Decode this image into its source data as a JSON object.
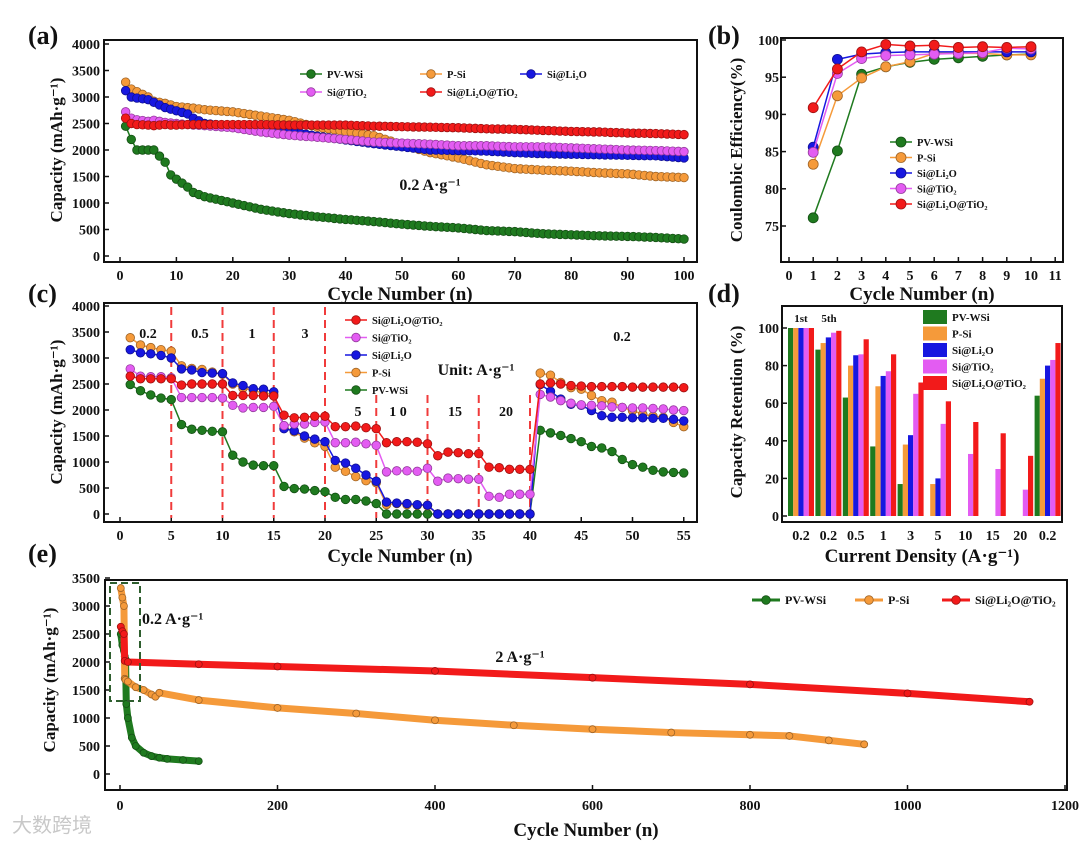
{
  "watermark": "大数跨境",
  "colors": {
    "PV-WSi": "#1f7a1f",
    "P-Si": "#f59a3a",
    "Si@Li₂O": "#1717e0",
    "Si@TiO₂": "#e35cf2",
    "Si@Li₂O@TiO₂": "#f21a1a"
  },
  "chart_data": [
    {
      "id": "a",
      "panel_label": "(a)",
      "type": "line",
      "xlabel": "Cycle Number (n)",
      "ylabel": "Capacity (mAh·g⁻¹)",
      "xlim": [
        0,
        100
      ],
      "ylim": [
        0,
        4000
      ],
      "xticks": [
        0,
        10,
        20,
        30,
        40,
        50,
        60,
        70,
        80,
        90,
        100
      ],
      "yticks": [
        0,
        500,
        1000,
        1500,
        2000,
        2500,
        3000,
        3500,
        4000
      ],
      "legend": [
        "PV-WSi",
        "P-Si",
        "Si@Li₂O",
        "Si@TiO₂",
        "Si@Li₂O@TiO₂"
      ],
      "legend_position": "top-center",
      "annotations": [
        "0.2 A·g⁻¹"
      ],
      "x": [
        1,
        2,
        3,
        5,
        6,
        8,
        9,
        10,
        12,
        13,
        15,
        20,
        25,
        30,
        35,
        40,
        45,
        50,
        55,
        60,
        65,
        70,
        75,
        80,
        85,
        90,
        95,
        100
      ],
      "series": [
        {
          "name": "PV-WSi",
          "values": [
            2450,
            2200,
            2000,
            2000,
            2000,
            1770,
            1530,
            1450,
            1300,
            1200,
            1120,
            1000,
            880,
            800,
            740,
            690,
            650,
            600,
            560,
            530,
            480,
            460,
            420,
            400,
            380,
            370,
            350,
            320
          ]
        },
        {
          "name": "P-Si",
          "values": [
            3280,
            3150,
            3100,
            3000,
            2920,
            2880,
            2850,
            2820,
            2800,
            2790,
            2760,
            2720,
            2640,
            2560,
            2430,
            2350,
            2270,
            2100,
            1950,
            1850,
            1720,
            1650,
            1620,
            1600,
            1570,
            1550,
            1500,
            1480
          ]
        },
        {
          "name": "Si@Li₂O",
          "values": [
            3120,
            3000,
            2980,
            2950,
            2900,
            2800,
            2770,
            2740,
            2680,
            2600,
            2500,
            2450,
            2400,
            2350,
            2260,
            2190,
            2120,
            2060,
            2000,
            1990,
            1980,
            1950,
            1930,
            1920,
            1910,
            1900,
            1890,
            1850
          ]
        },
        {
          "name": "Si@TiO₂",
          "values": [
            2720,
            2600,
            2570,
            2540,
            2560,
            2520,
            2510,
            2500,
            2480,
            2470,
            2460,
            2420,
            2340,
            2280,
            2240,
            2200,
            2150,
            2130,
            2110,
            2080,
            2080,
            2060,
            2060,
            2040,
            2020,
            2000,
            1990,
            1970
          ]
        },
        {
          "name": "Si@Li₂O@TiO₂",
          "values": [
            2600,
            2500,
            2480,
            2470,
            2460,
            2480,
            2470,
            2470,
            2480,
            2480,
            2480,
            2480,
            2480,
            2470,
            2470,
            2470,
            2450,
            2440,
            2430,
            2420,
            2400,
            2390,
            2370,
            2350,
            2340,
            2320,
            2310,
            2290
          ]
        }
      ]
    },
    {
      "id": "b",
      "panel_label": "(b)",
      "type": "line",
      "xlabel": "Cycle Number (n)",
      "ylabel": "Coulombic Efficiency(%)",
      "xlim": [
        0,
        11
      ],
      "ylim": [
        72.5,
        100
      ],
      "xticks": [
        0,
        1,
        2,
        3,
        4,
        5,
        6,
        7,
        8,
        9,
        10,
        11
      ],
      "yticks": [
        75,
        80,
        85,
        90,
        95,
        100
      ],
      "legend": [
        "PV-WSi",
        "P-Si",
        "Si@Li₂O",
        "Si@TiO₂",
        "Si@Li₂O@TiO₂"
      ],
      "legend_position": "center-right",
      "annotations": [],
      "x": [
        1,
        2,
        3,
        4,
        5,
        6,
        7,
        8,
        9,
        10
      ],
      "series": [
        {
          "name": "PV-WSi",
          "values": [
            76.1,
            85.1,
            95.4,
            96.4,
            97.0,
            97.4,
            97.6,
            97.8,
            98.0,
            98.1
          ]
        },
        {
          "name": "P-Si",
          "values": [
            83.3,
            92.5,
            94.9,
            96.4,
            97.1,
            98.2,
            98.2,
            98.2,
            98.0,
            98.0
          ]
        },
        {
          "name": "Si@Li₂O",
          "values": [
            85.6,
            97.4,
            98.1,
            98.3,
            98.4,
            98.4,
            98.4,
            98.4,
            98.4,
            98.4
          ]
        },
        {
          "name": "Si@TiO₂",
          "values": [
            84.9,
            95.5,
            97.5,
            97.9,
            98.0,
            98.1,
            98.2,
            98.3,
            98.9,
            98.8
          ]
        },
        {
          "name": "Si@Li₂O@TiO₂",
          "values": [
            90.9,
            96.1,
            98.4,
            99.4,
            99.2,
            99.3,
            99.0,
            99.1,
            99.0,
            99.1
          ]
        }
      ]
    },
    {
      "id": "c",
      "panel_label": "(c)",
      "type": "line",
      "xlabel": "Cycle Number (n)",
      "ylabel": "Capacity (mAh·g⁻¹)",
      "xlim": [
        0,
        55
      ],
      "ylim": [
        0,
        4000
      ],
      "xticks": [
        0,
        5,
        10,
        15,
        20,
        25,
        30,
        35,
        40,
        45,
        50,
        55
      ],
      "yticks": [
        0,
        500,
        1000,
        1500,
        2000,
        2500,
        3000,
        3500,
        4000
      ],
      "legend": [
        "Si@Li₂O@TiO₂",
        "Si@TiO₂",
        "Si@Li₂O",
        "P-Si",
        "PV-WSi"
      ],
      "legend_position": "top-center",
      "rate_labels": [
        "0.2",
        "0.5",
        "1",
        "3",
        "5",
        "1 0",
        "15",
        "20",
        "0.2"
      ],
      "annotations": [
        "Unit: A·g⁻¹"
      ],
      "dividers": [
        5,
        10,
        15,
        20,
        25,
        30,
        35,
        40
      ],
      "x": [
        1,
        2,
        3,
        4,
        5,
        6,
        7,
        8,
        9,
        10,
        11,
        12,
        13,
        14,
        15,
        16,
        17,
        18,
        19,
        20,
        21,
        22,
        23,
        24,
        25,
        26,
        27,
        28,
        29,
        30,
        31,
        32,
        33,
        34,
        35,
        36,
        37,
        38,
        39,
        40,
        41,
        42,
        43,
        44,
        45,
        46,
        47,
        48,
        49,
        50,
        51,
        52,
        53,
        54,
        55
      ],
      "series": [
        {
          "name": "PV-WSi",
          "values": [
            2490,
            2370,
            2290,
            2230,
            2200,
            1720,
            1630,
            1610,
            1590,
            1580,
            1130,
            1000,
            940,
            930,
            930,
            530,
            490,
            480,
            450,
            430,
            320,
            280,
            280,
            250,
            200,
            0,
            0,
            0,
            0,
            0,
            0,
            0,
            0,
            0,
            0,
            0,
            0,
            0,
            0,
            0,
            1610,
            1560,
            1510,
            1450,
            1390,
            1300,
            1270,
            1200,
            1050,
            950,
            900,
            840,
            810,
            800,
            790
          ]
        },
        {
          "name": "P-Si",
          "values": [
            3390,
            3250,
            3200,
            3160,
            3130,
            2850,
            2800,
            2780,
            2730,
            2690,
            2500,
            2420,
            2380,
            2320,
            2300,
            1680,
            1580,
            1460,
            1370,
            1300,
            900,
            820,
            720,
            640,
            600,
            180,
            200,
            180,
            170,
            160,
            0,
            0,
            0,
            0,
            0,
            0,
            0,
            0,
            0,
            0,
            2710,
            2670,
            2530,
            2430,
            2400,
            2280,
            2180,
            2150,
            2050,
            1990,
            1920,
            1880,
            1860,
            1760,
            1680
          ]
        },
        {
          "name": "Si@Li₂O",
          "values": [
            3160,
            3100,
            3080,
            3050,
            3000,
            2790,
            2770,
            2720,
            2710,
            2700,
            2520,
            2470,
            2410,
            2400,
            2350,
            1640,
            1600,
            1500,
            1440,
            1390,
            1030,
            980,
            880,
            750,
            630,
            230,
            210,
            200,
            180,
            170,
            0,
            0,
            0,
            0,
            0,
            0,
            0,
            0,
            0,
            0,
            2490,
            2360,
            2210,
            2110,
            2090,
            1990,
            1890,
            1860,
            1860,
            1850,
            1850,
            1840,
            1840,
            1820,
            1790
          ]
        },
        {
          "name": "Si@TiO₂",
          "values": [
            2790,
            2650,
            2640,
            2640,
            2620,
            2240,
            2240,
            2240,
            2240,
            2230,
            2090,
            2040,
            2050,
            2050,
            2070,
            1700,
            1730,
            1730,
            1760,
            1770,
            1370,
            1370,
            1380,
            1350,
            1320,
            810,
            830,
            830,
            820,
            880,
            630,
            690,
            680,
            670,
            670,
            340,
            320,
            380,
            380,
            380,
            2300,
            2250,
            2180,
            2130,
            2100,
            2090,
            2080,
            2060,
            2050,
            2040,
            2040,
            2030,
            2020,
            2000,
            1990
          ]
        },
        {
          "name": "Si@Li₂O@TiO₂",
          "values": [
            2650,
            2600,
            2600,
            2600,
            2600,
            2480,
            2500,
            2500,
            2500,
            2500,
            2280,
            2280,
            2280,
            2270,
            2270,
            1900,
            1850,
            1860,
            1880,
            1880,
            1680,
            1680,
            1690,
            1660,
            1640,
            1370,
            1390,
            1390,
            1380,
            1350,
            1120,
            1190,
            1180,
            1160,
            1160,
            900,
            890,
            860,
            860,
            860,
            2500,
            2520,
            2500,
            2470,
            2460,
            2450,
            2450,
            2450,
            2450,
            2440,
            2440,
            2440,
            2440,
            2440,
            2430
          ]
        }
      ]
    },
    {
      "id": "d",
      "panel_label": "(d)",
      "type": "bar",
      "xlabel": "Current Density (A·g⁻¹)",
      "ylabel": "Capacity Retention (%)",
      "ylim": [
        0,
        110
      ],
      "yticks": [
        0,
        20,
        40,
        60,
        80,
        100
      ],
      "categories": [
        "0.2",
        "0.2",
        "0.5",
        "1",
        "3",
        "5",
        "10",
        "15",
        "20",
        "0.2"
      ],
      "cycle_labels": [
        "1st",
        "5th"
      ],
      "legend": [
        "PV-WSi",
        "P-Si",
        "Si@Li₂O",
        "Si@TiO₂",
        "Si@Li₂O@TiO₂"
      ],
      "legend_position": "top-right",
      "series": [
        {
          "name": "PV-WSi",
          "values": [
            100,
            88.5,
            63,
            37,
            17,
            0,
            0,
            0,
            0,
            64
          ]
        },
        {
          "name": "P-Si",
          "values": [
            100,
            92,
            80,
            69,
            38,
            17,
            0,
            0,
            0,
            73
          ]
        },
        {
          "name": "Si@Li₂O",
          "values": [
            100,
            95,
            85.5,
            74.5,
            43,
            20,
            0,
            0,
            0,
            80
          ]
        },
        {
          "name": "Si@TiO₂",
          "values": [
            100,
            97.5,
            86,
            77,
            65,
            49,
            33,
            25,
            14,
            83
          ]
        },
        {
          "name": "Si@Li₂O@TiO₂",
          "values": [
            100,
            98.5,
            94,
            86,
            71,
            61,
            50,
            44,
            32,
            92
          ]
        }
      ]
    },
    {
      "id": "e",
      "panel_label": "(e)",
      "type": "line",
      "xlabel": "Cycle Number (n)",
      "ylabel": "Capacity (mAh·g⁻¹)",
      "xlim": [
        -20,
        1200
      ],
      "ylim": [
        -300,
        3500
      ],
      "xticks": [
        0,
        200,
        400,
        600,
        800,
        1000,
        1200
      ],
      "yticks": [
        0,
        500,
        1000,
        1500,
        2000,
        2500,
        3000,
        3500
      ],
      "legend": [
        "PV-WSi",
        "P-Si",
        "Si@Li₂O@TiO₂"
      ],
      "legend_position": "top-right",
      "annotations": [
        "0.2 A·g⁻¹",
        "2 A·g⁻¹"
      ],
      "series": [
        {
          "name": "PV-WSi",
          "x": [
            1,
            3,
            5,
            6,
            7,
            8,
            10,
            15,
            20,
            30,
            40,
            50,
            60,
            80,
            100
          ],
          "values": [
            2500,
            2300,
            2200,
            2100,
            2050,
            1250,
            1000,
            650,
            500,
            380,
            320,
            290,
            270,
            250,
            230
          ]
        },
        {
          "name": "P-Si",
          "x": [
            1,
            3,
            5,
            6,
            7,
            10,
            20,
            30,
            40,
            45,
            50,
            100,
            200,
            300,
            400,
            500,
            600,
            700,
            800,
            850,
            900,
            945
          ],
          "values": [
            3320,
            3150,
            3000,
            1700,
            1680,
            1650,
            1550,
            1500,
            1420,
            1380,
            1450,
            1320,
            1180,
            1080,
            960,
            870,
            800,
            740,
            700,
            680,
            600,
            530
          ]
        },
        {
          "name": "Si@Li₂O@TiO₂",
          "x": [
            1,
            3,
            5,
            6,
            10,
            100,
            200,
            400,
            600,
            800,
            1000,
            1155
          ],
          "values": [
            2630,
            2550,
            2500,
            2020,
            2000,
            1960,
            1920,
            1840,
            1720,
            1600,
            1440,
            1290
          ]
        }
      ]
    }
  ]
}
